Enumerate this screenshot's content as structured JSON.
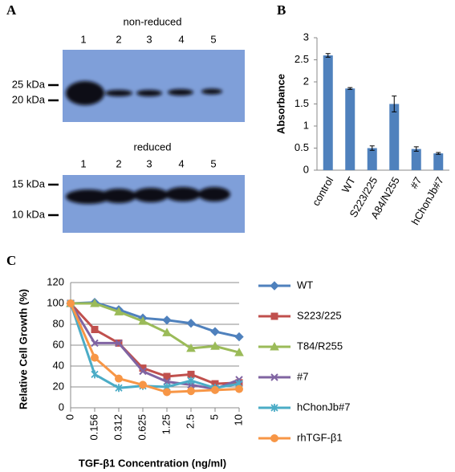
{
  "panels": [
    "A",
    "B",
    "C"
  ],
  "blots": [
    {
      "title": "non-reduced",
      "lanes": [
        "1",
        "2",
        "3",
        "4",
        "5"
      ],
      "markers": [
        "25 kDa",
        "20 kDa"
      ]
    },
    {
      "title": "reduced",
      "lanes": [
        "1",
        "2",
        "3",
        "4",
        "5"
      ],
      "markers": [
        "15 kDa",
        "10 kDa"
      ]
    }
  ],
  "chart_data": [
    {
      "type": "bar",
      "ylabel": "Absorbance",
      "categories": [
        "control",
        "WT",
        "S223/225",
        "A84/N255",
        "#7",
        "hChonJb#7"
      ],
      "values": [
        2.6,
        1.85,
        0.5,
        1.5,
        0.48,
        0.38
      ],
      "errors": [
        0.04,
        0.02,
        0.05,
        0.18,
        0.05,
        0.02
      ],
      "color": "#4f81bd",
      "ylim": [
        0,
        3
      ],
      "yticks": [
        0,
        0.5,
        1,
        1.5,
        2,
        2.5,
        3
      ]
    },
    {
      "type": "line",
      "ylabel": "Relative Cell Growth (%)",
      "xlabel": "TGF-β1 Concentration (ng/ml)",
      "categories": [
        "0",
        "0.156",
        "0.312",
        "0.625",
        "1.25",
        "2.5",
        "5",
        "10"
      ],
      "ylim": [
        0,
        120
      ],
      "yticks": [
        0,
        20,
        40,
        60,
        80,
        100,
        120
      ],
      "grid": true,
      "legend": "right",
      "series": [
        {
          "name": "WT",
          "color": "#4f81bd",
          "marker": "diamond",
          "values": [
            100,
            101,
            94,
            86,
            84,
            81,
            73,
            68
          ]
        },
        {
          "name": "S223/225",
          "color": "#c0504d",
          "marker": "square",
          "values": [
            100,
            75,
            62,
            38,
            30,
            32,
            23,
            24
          ]
        },
        {
          "name": "T84/R255",
          "color": "#9bbb59",
          "marker": "triangle",
          "values": [
            100,
            100,
            92,
            83,
            72,
            57,
            59,
            53
          ]
        },
        {
          "name": "#7",
          "color": "#8064a2",
          "marker": "x",
          "values": [
            100,
            62,
            62,
            35,
            25,
            22,
            18,
            27
          ]
        },
        {
          "name": "hChonJb#7",
          "color": "#4bacc6",
          "marker": "star",
          "values": [
            100,
            32,
            19,
            21,
            20,
            26,
            19,
            23
          ]
        },
        {
          "name": "rhTGF-β1",
          "color": "#f79646",
          "marker": "circle",
          "values": [
            100,
            48,
            28,
            22,
            15,
            16,
            17,
            18
          ]
        }
      ]
    }
  ]
}
